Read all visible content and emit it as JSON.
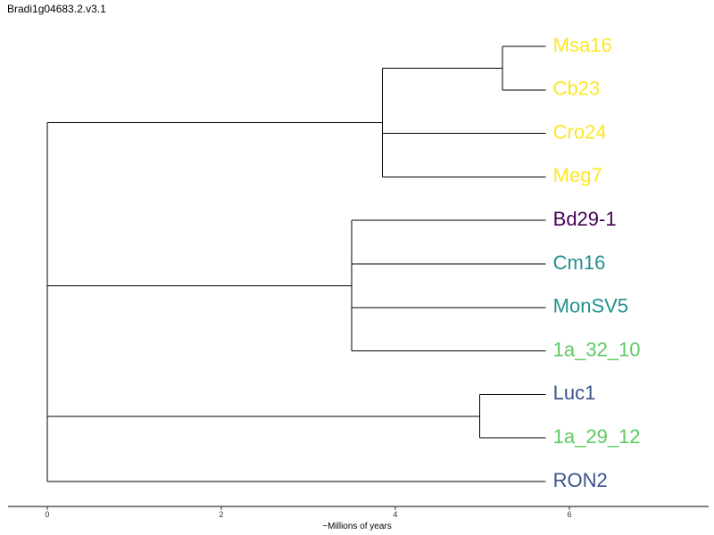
{
  "title": "Bradi1g04683.2.v3.1",
  "x_axis": {
    "label": "~Millions of years",
    "ticks": [
      0,
      2,
      4,
      6
    ],
    "range": [
      -0.45,
      7.6
    ]
  },
  "tips": [
    {
      "id": "Msa16",
      "label": "Msa16",
      "color": "#fde725"
    },
    {
      "id": "Cb23",
      "label": "Cb23",
      "color": "#fde725"
    },
    {
      "id": "Cro24",
      "label": "Cro24",
      "color": "#fde725"
    },
    {
      "id": "Meg7",
      "label": "Meg7",
      "color": "#fde725"
    },
    {
      "id": "Bd29-1",
      "label": "Bd29-1",
      "color": "#440154"
    },
    {
      "id": "Cm16",
      "label": "Cm16",
      "color": "#21918c"
    },
    {
      "id": "MonSV5",
      "label": "MonSV5",
      "color": "#21918c"
    },
    {
      "id": "1a_32_10",
      "label": "1a_32_10",
      "color": "#5ec962"
    },
    {
      "id": "Luc1",
      "label": "Luc1",
      "color": "#3b528b"
    },
    {
      "id": "1a_29_12",
      "label": "1a_29_12",
      "color": "#5ec962"
    },
    {
      "id": "RON2",
      "label": "RON2",
      "color": "#3b528b"
    }
  ],
  "tree": {
    "age": 0,
    "children": [
      {
        "age": 3.85,
        "children": [
          {
            "age": 5.23,
            "children": [
              {
                "tip": "Msa16"
              },
              {
                "tip": "Cb23"
              }
            ]
          },
          {
            "tip": "Cro24"
          },
          {
            "tip": "Meg7"
          }
        ]
      },
      {
        "age": 3.5,
        "children": [
          {
            "tip": "Bd29-1"
          },
          {
            "tip": "Cm16"
          },
          {
            "tip": "MonSV5"
          },
          {
            "tip": "1a_32_10"
          }
        ]
      },
      {
        "age": 4.97,
        "children": [
          {
            "tip": "Luc1"
          },
          {
            "tip": "1a_29_12"
          }
        ]
      },
      {
        "tip": "RON2"
      }
    ]
  },
  "tip_age": 5.73
}
